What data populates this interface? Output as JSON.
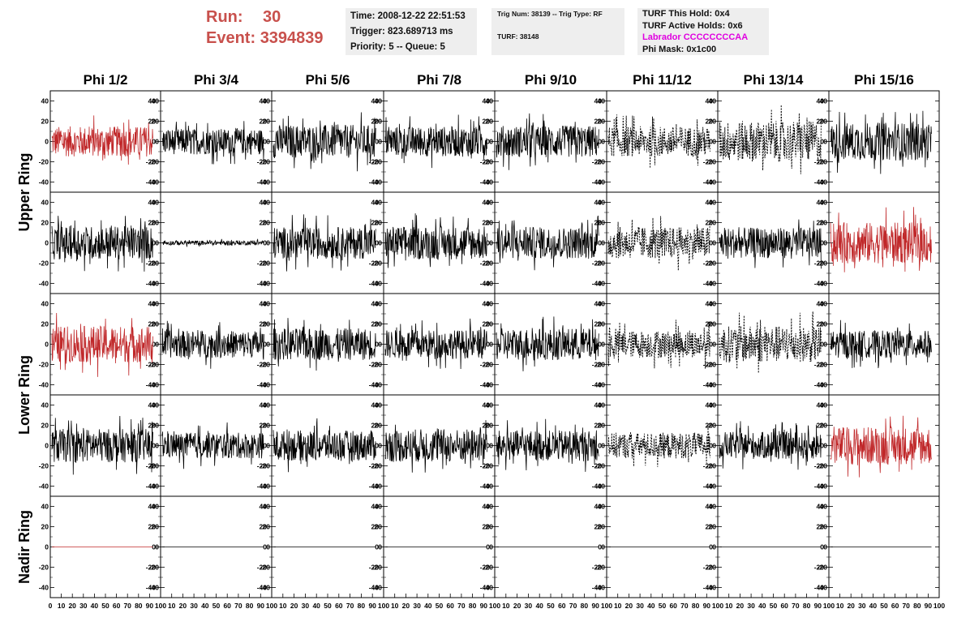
{
  "header": {
    "run_label": "Run:",
    "run_value": "30",
    "event_label": "Event:",
    "event_value": "3394839",
    "time": "Time: 2008-12-22 22:51:53",
    "trigger": "Trigger: 823.689713 ms",
    "priority": "Priority: 5 -- Queue: 5",
    "trig_num": "Trig Num: 38139 -- Trig Type: RF",
    "turf": "TURF: 38148",
    "turf_this_hold": "TURF This Hold: 0x4",
    "turf_active_holds": "TURF Active Holds: 0x6",
    "labrador": "Labrador CCCCCCCCAA",
    "phi_mask": "Phi Mask: 0x1c00"
  },
  "colors": {
    "header_red": "#c8504c",
    "trace_red": "#c0282a",
    "trace_black": "#000000",
    "labrador_magenta": "#e000e0"
  },
  "chart_data": {
    "type": "line",
    "columns": [
      "Phi 1/2",
      "Phi 3/4",
      "Phi 5/6",
      "Phi 7/8",
      "Phi 9/10",
      "Phi 11/12",
      "Phi 13/14",
      "Phi 15/16"
    ],
    "ring_labels": [
      "Upper Ring",
      "Lower Ring",
      "Nadir Ring"
    ],
    "xlim": [
      0,
      100
    ],
    "ylim": [
      -50,
      50
    ],
    "yticks": [
      -40,
      -20,
      0,
      20,
      40
    ],
    "xticks": [
      0,
      10,
      20,
      30,
      40,
      50,
      60,
      70,
      80,
      90,
      100
    ],
    "rows": [
      {
        "ring": "Upper Ring",
        "panels": [
          {
            "style": "red",
            "amplitude": 20
          },
          {
            "style": "black",
            "amplitude": 17
          },
          {
            "style": "black",
            "amplitude": 22
          },
          {
            "style": "black",
            "amplitude": 20
          },
          {
            "style": "black",
            "amplitude": 21
          },
          {
            "style": "dotted",
            "amplitude": 20
          },
          {
            "style": "dotted",
            "amplitude": 27
          },
          {
            "style": "black",
            "amplitude": 25
          }
        ]
      },
      {
        "ring": "Upper Ring",
        "panels": [
          {
            "style": "black",
            "amplitude": 22
          },
          {
            "style": "black",
            "amplitude": 3
          },
          {
            "style": "black",
            "amplitude": 21
          },
          {
            "style": "black",
            "amplitude": 22
          },
          {
            "style": "black",
            "amplitude": 21
          },
          {
            "style": "dotted",
            "amplitude": 21
          },
          {
            "style": "black",
            "amplitude": 20
          },
          {
            "style": "red",
            "amplitude": 27
          }
        ]
      },
      {
        "ring": "Lower Ring",
        "panels": [
          {
            "style": "red",
            "amplitude": 24
          },
          {
            "style": "black",
            "amplitude": 18
          },
          {
            "style": "black",
            "amplitude": 21
          },
          {
            "style": "black",
            "amplitude": 19
          },
          {
            "style": "black",
            "amplitude": 21
          },
          {
            "style": "dotted",
            "amplitude": 18
          },
          {
            "style": "dotted",
            "amplitude": 24
          },
          {
            "style": "black",
            "amplitude": 18
          }
        ]
      },
      {
        "ring": "Lower Ring",
        "panels": [
          {
            "style": "black",
            "amplitude": 22
          },
          {
            "style": "black",
            "amplitude": 17
          },
          {
            "style": "black",
            "amplitude": 20
          },
          {
            "style": "black",
            "amplitude": 22
          },
          {
            "style": "black",
            "amplitude": 20
          },
          {
            "style": "dotted",
            "amplitude": 17
          },
          {
            "style": "black",
            "amplitude": 18
          },
          {
            "style": "red",
            "amplitude": 25
          }
        ]
      },
      {
        "ring": "Nadir Ring",
        "panels": [
          {
            "style": "red",
            "amplitude": 0
          },
          {
            "style": "black",
            "amplitude": 0
          },
          {
            "style": "black",
            "amplitude": 0
          },
          {
            "style": "black",
            "amplitude": 0
          },
          {
            "style": "black",
            "amplitude": 0
          },
          {
            "style": "black",
            "amplitude": 0
          },
          {
            "style": "black",
            "amplitude": 0
          },
          {
            "style": "black",
            "amplitude": 0
          }
        ]
      }
    ]
  }
}
